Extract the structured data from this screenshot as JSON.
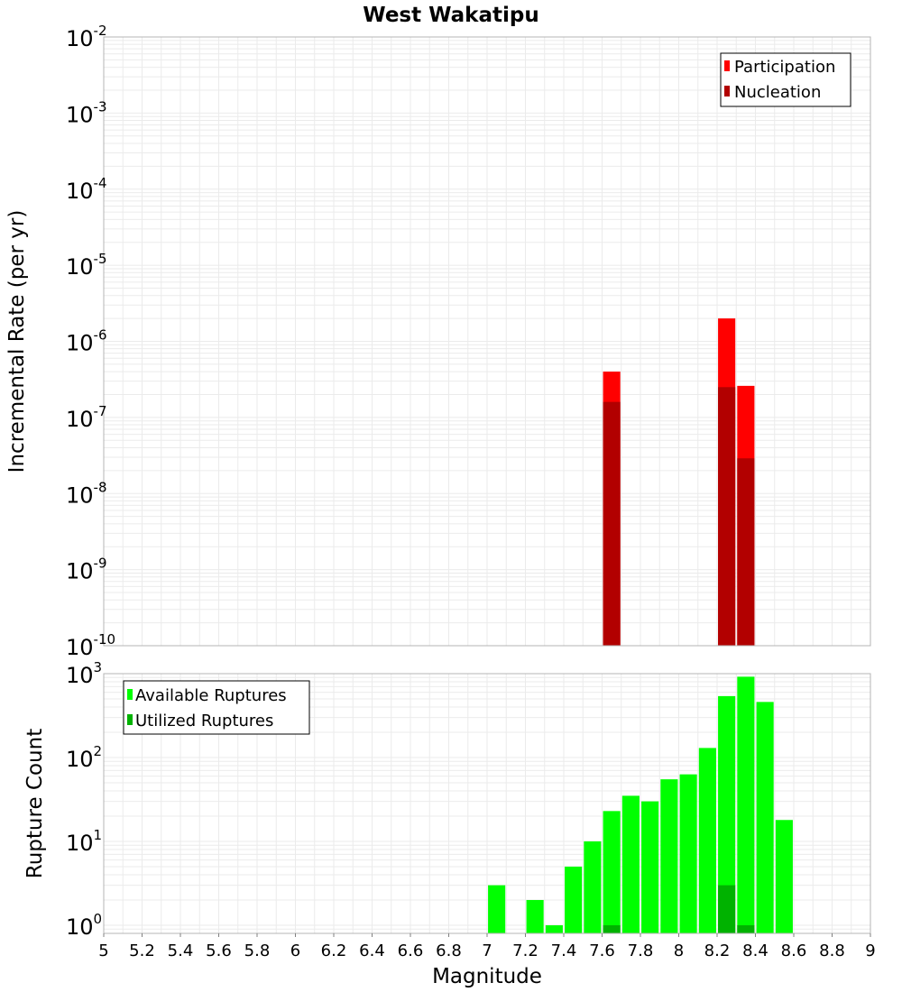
{
  "chart_data": [
    {
      "type": "bar",
      "title": "West Wakatipu",
      "xlabel": "Magnitude",
      "ylabel": "Incremental Rate (per yr)",
      "yscale": "log",
      "xlim": [
        5,
        9
      ],
      "ylim": [
        1e-10,
        0.01
      ],
      "y_tick_exponents": [
        -10,
        -9,
        -8,
        -7,
        -6,
        -5,
        -4,
        -3,
        -2
      ],
      "grid": true,
      "legend_position": "top-right",
      "series": [
        {
          "name": "Participation",
          "color": "#ff0000",
          "points": [
            {
              "x": 7.65,
              "y": 4e-07
            },
            {
              "x": 8.25,
              "y": 2e-06
            },
            {
              "x": 8.35,
              "y": 2.6e-07
            }
          ]
        },
        {
          "name": "Nucleation",
          "color": "#b20000",
          "points": [
            {
              "x": 7.65,
              "y": 1.6e-07
            },
            {
              "x": 8.25,
              "y": 2.5e-07
            },
            {
              "x": 8.35,
              "y": 2.9e-08
            }
          ]
        }
      ]
    },
    {
      "type": "bar",
      "title": "",
      "xlabel": "Magnitude",
      "ylabel": "Rupture Count",
      "yscale": "log",
      "xlim": [
        5,
        9
      ],
      "ylim": [
        0.8,
        1000
      ],
      "y_tick_exponents": [
        0,
        1,
        2,
        3
      ],
      "x_ticks": [
        "5",
        "5.2",
        "5.4",
        "5.6",
        "5.8",
        "6",
        "6.2",
        "6.4",
        "6.6",
        "6.8",
        "7",
        "7.2",
        "7.4",
        "7.6",
        "7.8",
        "8",
        "8.2",
        "8.4",
        "8.6",
        "8.8",
        "9"
      ],
      "grid": true,
      "legend_position": "top-left",
      "series": [
        {
          "name": "Available Ruptures",
          "color": "#00ff00",
          "points": [
            {
              "x": 7.05,
              "y": 3
            },
            {
              "x": 7.25,
              "y": 2
            },
            {
              "x": 7.35,
              "y": 1
            },
            {
              "x": 7.45,
              "y": 5
            },
            {
              "x": 7.55,
              "y": 10
            },
            {
              "x": 7.65,
              "y": 23
            },
            {
              "x": 7.75,
              "y": 35
            },
            {
              "x": 7.85,
              "y": 30
            },
            {
              "x": 7.95,
              "y": 55
            },
            {
              "x": 8.05,
              "y": 63
            },
            {
              "x": 8.15,
              "y": 130
            },
            {
              "x": 8.25,
              "y": 540
            },
            {
              "x": 8.35,
              "y": 920
            },
            {
              "x": 8.45,
              "y": 460
            },
            {
              "x": 8.55,
              "y": 18
            }
          ]
        },
        {
          "name": "Utilized Ruptures",
          "color": "#00b200",
          "points": [
            {
              "x": 7.65,
              "y": 1
            },
            {
              "x": 8.25,
              "y": 3
            },
            {
              "x": 8.35,
              "y": 1
            }
          ]
        }
      ]
    }
  ],
  "colors": {
    "grid": "#ebebeb",
    "frame": "#b4b4b4",
    "legend_border": "#000000"
  }
}
